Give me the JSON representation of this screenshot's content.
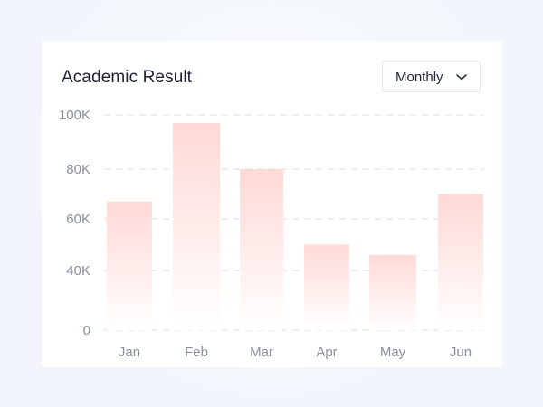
{
  "card": {
    "title": "Academic Result",
    "dropdown": {
      "selected": "Monthly",
      "icon": "chevron-down-icon"
    }
  },
  "chart_data": {
    "type": "bar",
    "title": "Academic Result",
    "categories": [
      "Jan",
      "Feb",
      "Mar",
      "Apr",
      "May",
      "Jun"
    ],
    "values": [
      67000,
      97000,
      80000,
      50000,
      46000,
      70000
    ],
    "ytick_values": [
      0,
      40000,
      60000,
      80000,
      100000
    ],
    "ytick_labels": [
      "0",
      "40K",
      "60K",
      "80K",
      "100K"
    ],
    "ylim": [
      0,
      100000
    ],
    "grid": true,
    "bar_color_top": "#ffd9d6",
    "bar_color_bottom": "#ffffff",
    "grid_color": "#e6e9ef",
    "xlabel": "",
    "ylabel": ""
  }
}
